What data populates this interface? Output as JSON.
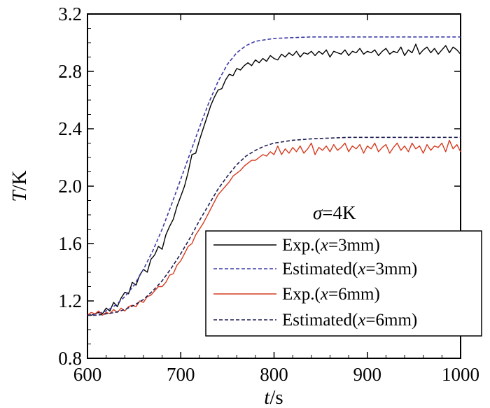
{
  "chart_data": {
    "type": "line",
    "xlabel": {
      "var": "t",
      "unit": "/s"
    },
    "ylabel": {
      "var": "T",
      "unit": "/K"
    },
    "xlim": [
      600,
      1000
    ],
    "ylim": [
      0.8,
      3.2
    ],
    "xticks": [
      "600",
      "700",
      "800",
      "900",
      "1000"
    ],
    "yticks": [
      "0.8",
      "1.2",
      "1.6",
      "2.0",
      "2.4",
      "2.8",
      "3.2"
    ],
    "annotation": {
      "symbol": "σ",
      "text": "=4K"
    },
    "legend_position": "lower-right",
    "series": [
      {
        "name": "Exp.(x=3mm)",
        "legend": {
          "pre": "Exp.(",
          "var": "x",
          "post": "=3mm)"
        },
        "color": "#000000",
        "style": "solid",
        "x": [
          600,
          604,
          608,
          612,
          616,
          620,
          624,
          628,
          632,
          636,
          640,
          644,
          648,
          652,
          656,
          660,
          664,
          668,
          672,
          676,
          680,
          684,
          688,
          692,
          696,
          700,
          704,
          708,
          712,
          716,
          720,
          724,
          728,
          732,
          736,
          740,
          744,
          748,
          752,
          756,
          760,
          764,
          768,
          772,
          776,
          780,
          784,
          788,
          792,
          796,
          800,
          804,
          808,
          812,
          816,
          820,
          824,
          828,
          832,
          836,
          840,
          844,
          848,
          852,
          856,
          860,
          864,
          868,
          872,
          876,
          880,
          884,
          888,
          892,
          896,
          900,
          904,
          908,
          912,
          916,
          920,
          924,
          928,
          932,
          936,
          940,
          944,
          948,
          952,
          956,
          960,
          964,
          968,
          972,
          976,
          980,
          984,
          988,
          992,
          996,
          1000
        ],
        "values": [
          1.1,
          1.1,
          1.11,
          1.12,
          1.11,
          1.15,
          1.13,
          1.19,
          1.16,
          1.22,
          1.26,
          1.25,
          1.33,
          1.31,
          1.38,
          1.42,
          1.4,
          1.49,
          1.52,
          1.58,
          1.56,
          1.66,
          1.72,
          1.77,
          1.86,
          1.93,
          2.0,
          2.1,
          2.22,
          2.23,
          2.32,
          2.4,
          2.48,
          2.56,
          2.62,
          2.67,
          2.68,
          2.74,
          2.78,
          2.77,
          2.82,
          2.81,
          2.84,
          2.86,
          2.84,
          2.88,
          2.86,
          2.89,
          2.87,
          2.91,
          2.89,
          2.88,
          2.92,
          2.9,
          2.93,
          2.91,
          2.94,
          2.9,
          2.93,
          2.92,
          2.94,
          2.91,
          2.94,
          2.92,
          2.95,
          2.9,
          2.94,
          2.93,
          2.92,
          2.95,
          2.91,
          2.94,
          2.93,
          2.96,
          2.92,
          2.94,
          2.93,
          2.95,
          2.91,
          2.94,
          2.96,
          2.92,
          2.94,
          2.93,
          2.97,
          2.91,
          2.95,
          2.93,
          2.99,
          2.92,
          2.95,
          2.97,
          2.93,
          2.96,
          2.92,
          2.95,
          2.98,
          2.93,
          2.97,
          2.95,
          2.92
        ]
      },
      {
        "name": "Estimated(x=3mm)",
        "legend": {
          "pre": "Estimated(",
          "var": "x",
          "post": "=3mm)"
        },
        "color": "#3a3aa8",
        "style": "dashed",
        "x": [
          600,
          610,
          620,
          630,
          640,
          650,
          660,
          670,
          680,
          690,
          700,
          710,
          720,
          730,
          740,
          750,
          760,
          770,
          780,
          790,
          800,
          820,
          840,
          860,
          880,
          900,
          920,
          940,
          960,
          980,
          1000
        ],
        "values": [
          1.1,
          1.11,
          1.13,
          1.17,
          1.23,
          1.31,
          1.42,
          1.55,
          1.7,
          1.87,
          2.05,
          2.23,
          2.41,
          2.58,
          2.73,
          2.85,
          2.93,
          2.98,
          3.01,
          3.02,
          3.03,
          3.035,
          3.04,
          3.04,
          3.04,
          3.04,
          3.04,
          3.04,
          3.04,
          3.04,
          3.04
        ]
      },
      {
        "name": "Exp.(x=6mm)",
        "legend": {
          "pre": "Exp.(",
          "var": "x",
          "post": "=6mm)"
        },
        "color": "#d63a1e",
        "style": "solid",
        "x": [
          600,
          604,
          608,
          612,
          616,
          620,
          624,
          628,
          632,
          636,
          640,
          644,
          648,
          652,
          656,
          660,
          664,
          668,
          672,
          676,
          680,
          684,
          688,
          692,
          696,
          700,
          704,
          708,
          712,
          716,
          720,
          724,
          728,
          732,
          736,
          740,
          744,
          748,
          752,
          756,
          760,
          764,
          768,
          772,
          776,
          780,
          784,
          788,
          792,
          796,
          800,
          804,
          808,
          812,
          816,
          820,
          824,
          828,
          832,
          836,
          840,
          844,
          848,
          852,
          856,
          860,
          864,
          868,
          872,
          876,
          880,
          884,
          888,
          892,
          896,
          900,
          904,
          908,
          912,
          916,
          920,
          924,
          928,
          932,
          936,
          940,
          944,
          948,
          952,
          956,
          960,
          964,
          968,
          972,
          976,
          980,
          984,
          988,
          992,
          996,
          1000
        ],
        "values": [
          1.1,
          1.12,
          1.11,
          1.13,
          1.1,
          1.12,
          1.11,
          1.14,
          1.12,
          1.15,
          1.13,
          1.16,
          1.17,
          1.16,
          1.2,
          1.19,
          1.23,
          1.24,
          1.27,
          1.3,
          1.3,
          1.33,
          1.38,
          1.39,
          1.45,
          1.48,
          1.53,
          1.58,
          1.6,
          1.66,
          1.7,
          1.74,
          1.79,
          1.84,
          1.89,
          1.94,
          1.97,
          2.0,
          2.03,
          2.07,
          2.09,
          2.11,
          2.14,
          2.16,
          2.18,
          2.18,
          2.2,
          2.22,
          2.21,
          2.24,
          2.22,
          2.28,
          2.22,
          2.26,
          2.23,
          2.27,
          2.24,
          2.28,
          2.23,
          2.26,
          2.3,
          2.22,
          2.27,
          2.25,
          2.28,
          2.24,
          2.29,
          2.25,
          2.27,
          2.3,
          2.24,
          2.28,
          2.26,
          2.29,
          2.23,
          2.28,
          2.26,
          2.3,
          2.24,
          2.27,
          2.29,
          2.23,
          2.27,
          2.3,
          2.25,
          2.28,
          2.24,
          2.3,
          2.26,
          2.28,
          2.23,
          2.29,
          2.25,
          2.28,
          2.27,
          2.3,
          2.24,
          2.32,
          2.26,
          2.29,
          2.24
        ]
      },
      {
        "name": "Estimated(x=6mm)",
        "legend": {
          "pre": "Estimated(",
          "var": "x",
          "post": "=6mm)"
        },
        "color": "#1e1e50",
        "style": "dashed",
        "x": [
          600,
          610,
          620,
          630,
          640,
          650,
          660,
          670,
          680,
          690,
          700,
          710,
          720,
          730,
          740,
          750,
          760,
          770,
          780,
          790,
          800,
          820,
          840,
          860,
          880,
          900,
          920,
          940,
          960,
          980,
          1000
        ],
        "values": [
          1.1,
          1.1,
          1.11,
          1.12,
          1.14,
          1.17,
          1.21,
          1.27,
          1.34,
          1.43,
          1.53,
          1.64,
          1.76,
          1.87,
          1.98,
          2.07,
          2.15,
          2.21,
          2.25,
          2.28,
          2.3,
          2.32,
          2.33,
          2.335,
          2.34,
          2.34,
          2.34,
          2.34,
          2.34,
          2.34,
          2.34
        ]
      }
    ]
  }
}
